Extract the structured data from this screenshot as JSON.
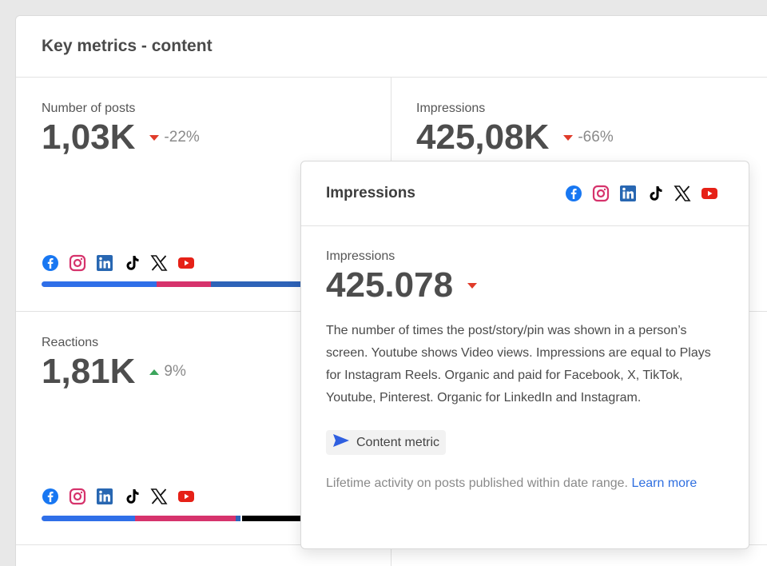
{
  "panel": {
    "title": "Key metrics - content"
  },
  "metrics": [
    {
      "label": "Number of posts",
      "value": "1,03K",
      "delta": "-22%",
      "direction": "down"
    },
    {
      "label": "Impressions",
      "value": "425,08K",
      "delta": "-66%",
      "direction": "down"
    },
    {
      "label": "Reactions",
      "value": "1,81K",
      "delta": "9%",
      "direction": "up"
    }
  ],
  "networks": [
    "facebook-icon",
    "instagram-icon",
    "linkedin-icon",
    "tiktok-icon",
    "x-icon",
    "youtube-icon"
  ],
  "colors": {
    "facebook": "#1877f2",
    "instagram": "#d6336c",
    "linkedin": "#2867b2",
    "tiktok": "#000000",
    "youtube": "#e62117",
    "down": "#e03b2a",
    "up": "#3ca55c",
    "link": "#2f6fe0"
  },
  "tooltip": {
    "title": "Impressions",
    "label": "Impressions",
    "value": "425.078",
    "direction": "down",
    "description": "The number of times the post/story/pin was shown in a person’s screen. Youtube shows Video views. Impressions are equal to Plays for Instagram Reels. Organic and paid for Facebook, X, TikTok, Youtube, Pinterest. Organic for LinkedIn and Instagram.",
    "badge": "Content metric",
    "footer_text": "Lifetime activity on posts published within date range.",
    "footer_link": "Learn more"
  }
}
